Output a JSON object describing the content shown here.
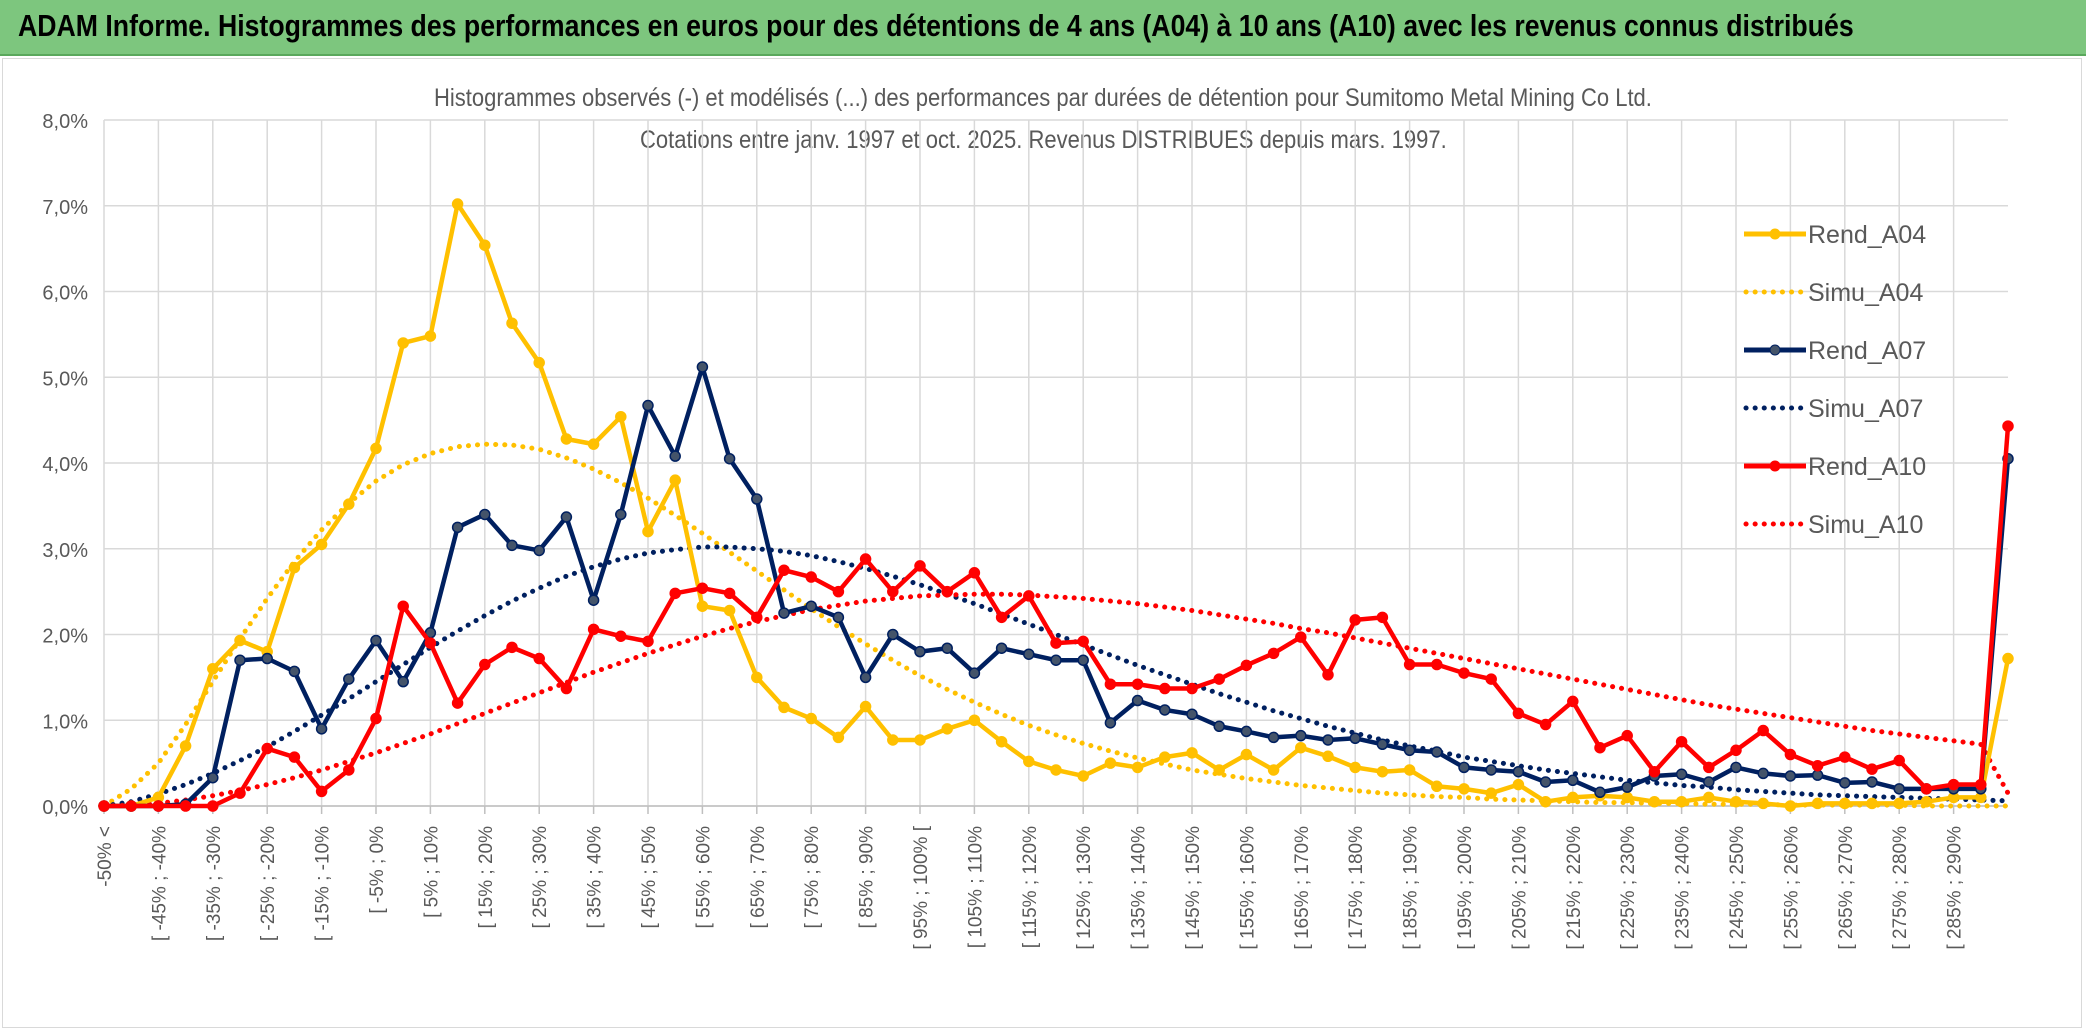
{
  "banner": {
    "title": "ADAM Informe. Histogrammes des performances en euros pour des détentions de 4 ans (A04) à 10 ans (A10) avec les revenus connus distribués"
  },
  "colors": {
    "banner_bg": "#7dc67e",
    "rend_a04": "#ffc000",
    "simu_a04": "#ffc000",
    "rend_a07": "#002060",
    "simu_a07": "#002060",
    "rend_a10": "#ff0000",
    "simu_a10": "#ff0000"
  },
  "chart_data": {
    "type": "line",
    "title": "Histogrammes observés (-) et modélisés (...) des performances par durées de détention pour Sumitomo Metal Mining Co Ltd.",
    "subtitle": "Cotations entre janv. 1997 et oct. 2025. Revenus DISTRIBUES depuis mars. 1997.",
    "xlabel": "",
    "ylabel": "",
    "ylim": [
      0,
      8
    ],
    "y_unit": "%",
    "yticks": [
      "0,0%",
      "1,0%",
      "2,0%",
      "3,0%",
      "4,0%",
      "5,0%",
      "6,0%",
      "7,0%",
      "8,0%"
    ],
    "grid": true,
    "legend_position": "right",
    "xtick_labels": [
      "-50% <",
      "[ -45% ; -40%",
      "[ -35% ; -30%",
      "[ -25% ; -20%",
      "[ -15% ; -10%",
      "[ -5% ; 0%",
      "[ 5% ; 10%",
      "[ 15% ; 20%",
      "[ 25% ; 30%",
      "[ 35% ; 40%",
      "[ 45% ; 50%",
      "[ 55% ; 60%",
      "[ 65% ; 70%",
      "[ 75% ; 80%",
      "[ 85% ; 90%",
      "[ 95% ; 100% [",
      "[ 105% ; 110%",
      "[ 115% ; 120%",
      "[ 125% ; 130%",
      "[ 135% ; 140%",
      "[ 145% ; 150%",
      "[ 155% ; 160%",
      "[ 165% ; 170%",
      "[ 175% ; 180%",
      "[ 185% ; 190%",
      "[ 195% ; 200%",
      "[ 205% ; 210%",
      "[ 215% ; 220%",
      "[ 225% ; 230%",
      "[ 235% ; 240%",
      "[ 245% ; 250%",
      "[ 255% ; 260%",
      "[ 265% ; 270%",
      "[ 275% ; 280%",
      "[ 285% ; 290%"
    ],
    "series": [
      {
        "name": "Rend_A04",
        "style": "solid",
        "values": [
          0.0,
          0.0,
          0.1,
          0.7,
          1.6,
          1.93,
          1.8,
          2.78,
          3.05,
          3.52,
          4.17,
          5.4,
          5.48,
          7.02,
          6.54,
          5.63,
          5.17,
          4.28,
          4.22,
          4.54,
          3.2,
          3.8,
          2.33,
          2.28,
          1.5,
          1.15,
          1.02,
          0.8,
          1.16,
          0.77,
          0.77,
          0.9,
          1.0,
          0.75,
          0.52,
          0.42,
          0.35,
          0.5,
          0.45,
          0.57,
          0.62,
          0.42,
          0.6,
          0.42,
          0.68,
          0.58,
          0.45,
          0.4,
          0.42,
          0.23,
          0.2,
          0.15,
          0.25,
          0.05,
          0.1,
          0.12,
          0.1,
          0.05,
          0.05,
          0.1,
          0.05,
          0.03,
          0.0,
          0.03,
          0.03,
          0.03,
          0.03,
          0.05,
          0.1,
          0.1,
          1.72
        ]
      },
      {
        "name": "Simu_A04",
        "style": "dotted",
        "values": [
          0.0,
          0.2,
          0.5,
          0.95,
          1.45,
          1.95,
          2.42,
          2.85,
          3.22,
          3.53,
          3.79,
          3.98,
          4.11,
          4.19,
          4.22,
          4.21,
          4.16,
          4.06,
          3.93,
          3.77,
          3.59,
          3.39,
          3.18,
          2.96,
          2.74,
          2.52,
          2.3,
          2.09,
          1.89,
          1.7,
          1.52,
          1.36,
          1.21,
          1.07,
          0.94,
          0.83,
          0.73,
          0.64,
          0.56,
          0.49,
          0.42,
          0.37,
          0.32,
          0.28,
          0.24,
          0.21,
          0.18,
          0.15,
          0.13,
          0.11,
          0.1,
          0.08,
          0.07,
          0.06,
          0.05,
          0.04,
          0.04,
          0.03,
          0.03,
          0.02,
          0.02,
          0.02,
          0.01,
          0.01,
          0.01,
          0.01,
          0.01,
          0.0,
          0.0,
          0.0,
          0.0
        ]
      },
      {
        "name": "Rend_A07",
        "style": "solid",
        "values": [
          0.0,
          0.0,
          0.0,
          0.02,
          0.33,
          1.7,
          1.72,
          1.57,
          0.9,
          1.48,
          1.93,
          1.45,
          2.02,
          3.25,
          3.4,
          3.04,
          2.98,
          3.37,
          2.4,
          3.4,
          4.67,
          4.08,
          5.12,
          4.05,
          3.58,
          2.25,
          2.33,
          2.2,
          1.5,
          2.0,
          1.8,
          1.84,
          1.55,
          1.84,
          1.77,
          1.7,
          1.7,
          0.97,
          1.23,
          1.12,
          1.07,
          0.93,
          0.87,
          0.8,
          0.82,
          0.77,
          0.79,
          0.72,
          0.65,
          0.63,
          0.45,
          0.42,
          0.4,
          0.28,
          0.3,
          0.16,
          0.22,
          0.35,
          0.37,
          0.28,
          0.45,
          0.38,
          0.35,
          0.36,
          0.27,
          0.28,
          0.2,
          0.2,
          0.2,
          0.2,
          4.05
        ]
      },
      {
        "name": "Simu_A07",
        "style": "dotted",
        "values": [
          0.0,
          0.05,
          0.14,
          0.25,
          0.38,
          0.53,
          0.69,
          0.87,
          1.06,
          1.25,
          1.45,
          1.65,
          1.85,
          2.04,
          2.22,
          2.39,
          2.54,
          2.68,
          2.79,
          2.88,
          2.95,
          2.99,
          3.02,
          3.02,
          3.0,
          2.97,
          2.92,
          2.85,
          2.77,
          2.68,
          2.58,
          2.47,
          2.36,
          2.24,
          2.12,
          2.0,
          1.88,
          1.76,
          1.64,
          1.53,
          1.42,
          1.31,
          1.21,
          1.11,
          1.02,
          0.93,
          0.85,
          0.77,
          0.7,
          0.64,
          0.57,
          0.52,
          0.47,
          0.42,
          0.38,
          0.34,
          0.3,
          0.27,
          0.24,
          0.22,
          0.19,
          0.17,
          0.15,
          0.13,
          0.12,
          0.11,
          0.1,
          0.09,
          0.08,
          0.07,
          0.06
        ]
      },
      {
        "name": "Rend_A10",
        "style": "solid",
        "values": [
          0.0,
          0.0,
          0.0,
          0.0,
          0.0,
          0.15,
          0.67,
          0.57,
          0.17,
          0.42,
          1.02,
          2.33,
          1.9,
          1.2,
          1.65,
          1.85,
          1.72,
          1.37,
          2.06,
          1.98,
          1.92,
          2.48,
          2.54,
          2.48,
          2.2,
          2.75,
          2.67,
          2.5,
          2.88,
          2.5,
          2.8,
          2.5,
          2.72,
          2.2,
          2.45,
          1.9,
          1.92,
          1.42,
          1.42,
          1.37,
          1.37,
          1.48,
          1.64,
          1.78,
          1.97,
          1.53,
          2.17,
          2.2,
          1.65,
          1.65,
          1.55,
          1.48,
          1.08,
          0.95,
          1.22,
          0.68,
          0.82,
          0.4,
          0.75,
          0.45,
          0.65,
          0.88,
          0.6,
          0.47,
          0.57,
          0.43,
          0.53,
          0.2,
          0.25,
          0.25,
          4.43
        ]
      },
      {
        "name": "Simu_A10",
        "style": "dotted",
        "values": [
          0.0,
          0.01,
          0.03,
          0.07,
          0.12,
          0.18,
          0.25,
          0.33,
          0.42,
          0.52,
          0.62,
          0.73,
          0.84,
          0.96,
          1.08,
          1.2,
          1.32,
          1.44,
          1.56,
          1.67,
          1.78,
          1.88,
          1.98,
          2.07,
          2.15,
          2.22,
          2.29,
          2.34,
          2.39,
          2.42,
          2.45,
          2.46,
          2.47,
          2.47,
          2.46,
          2.44,
          2.42,
          2.39,
          2.36,
          2.32,
          2.28,
          2.23,
          2.18,
          2.13,
          2.07,
          2.02,
          1.96,
          1.9,
          1.84,
          1.78,
          1.72,
          1.66,
          1.6,
          1.54,
          1.48,
          1.42,
          1.36,
          1.3,
          1.24,
          1.18,
          1.13,
          1.08,
          1.03,
          0.98,
          0.93,
          0.88,
          0.84,
          0.8,
          0.76,
          0.72,
          0.15
        ]
      }
    ]
  }
}
